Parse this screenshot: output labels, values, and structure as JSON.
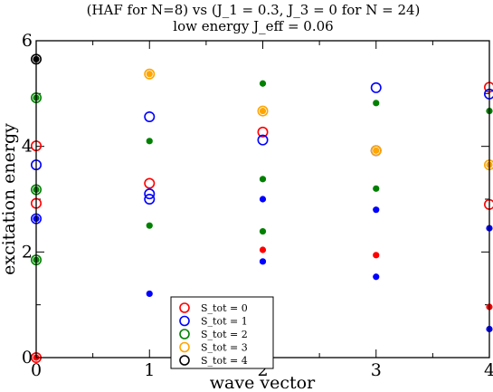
{
  "chart_data": {
    "type": "scatter",
    "title": "(HAF for N=8) vs (J_1 = 0.3, J_3 = 0 for N = 24)",
    "subtitle": "low energy J_eff = 0.06",
    "xlabel": "wave vector",
    "ylabel": "excitation energy",
    "xlim": [
      0,
      4
    ],
    "ylim": [
      0,
      6
    ],
    "xticks": [
      0,
      1,
      2,
      3,
      4
    ],
    "yticks": [
      0,
      2,
      4,
      6
    ],
    "xtick_labels": [
      "0",
      "1",
      "2",
      "3",
      "4"
    ],
    "ytick_labels": [
      "0",
      "2",
      "4",
      "6"
    ],
    "grid": false,
    "legend_position": "bottom-center",
    "series": [
      {
        "name": "S_tot = 0",
        "color": "#ff0000",
        "hollow": [
          [
            0,
            0.0
          ],
          [
            0,
            4.01
          ],
          [
            0,
            2.92
          ],
          [
            1,
            3.3
          ],
          [
            2,
            4.27
          ],
          [
            4,
            5.12
          ],
          [
            4,
            2.9
          ]
        ],
        "filled": [
          [
            0,
            0.0
          ],
          [
            2,
            2.04
          ],
          [
            3,
            1.94
          ],
          [
            4,
            0.96
          ]
        ]
      },
      {
        "name": "S_tot = 1",
        "color": "#0000ff",
        "hollow": [
          [
            0,
            3.65
          ],
          [
            0,
            2.63
          ],
          [
            1,
            4.56
          ],
          [
            1,
            3.1
          ],
          [
            1,
            3.0
          ],
          [
            2,
            4.12
          ],
          [
            3,
            5.11
          ],
          [
            3,
            3.92
          ],
          [
            4,
            4.99
          ]
        ],
        "filled": [
          [
            0,
            2.63
          ],
          [
            1,
            1.21
          ],
          [
            2,
            3.0
          ],
          [
            2,
            1.82
          ],
          [
            3,
            2.8
          ],
          [
            3,
            1.53
          ],
          [
            4,
            2.45
          ],
          [
            4,
            0.54
          ]
        ]
      },
      {
        "name": "S_tot = 2",
        "color": "#008000",
        "hollow": [
          [
            0,
            4.92
          ],
          [
            0,
            3.18
          ],
          [
            0,
            1.85
          ]
        ],
        "filled": [
          [
            0,
            4.92
          ],
          [
            0,
            3.18
          ],
          [
            0,
            1.85
          ],
          [
            1,
            4.1
          ],
          [
            1,
            2.5
          ],
          [
            2,
            5.19
          ],
          [
            2,
            3.38
          ],
          [
            2,
            2.39
          ],
          [
            3,
            4.82
          ],
          [
            3,
            3.2
          ],
          [
            4,
            4.67
          ]
        ]
      },
      {
        "name": "S_tot = 3",
        "color": "#ffa500",
        "hollow": [
          [
            1,
            5.37
          ],
          [
            2,
            4.67
          ],
          [
            3,
            3.92
          ],
          [
            4,
            3.65
          ]
        ],
        "filled": [
          [
            1,
            5.37
          ],
          [
            2,
            4.67
          ],
          [
            3,
            3.92
          ],
          [
            4,
            3.65
          ]
        ]
      },
      {
        "name": "S_tot = 4",
        "color": "#000000",
        "hollow": [
          [
            0,
            5.65
          ]
        ],
        "filled": [
          [
            0,
            5.65
          ]
        ]
      }
    ]
  }
}
